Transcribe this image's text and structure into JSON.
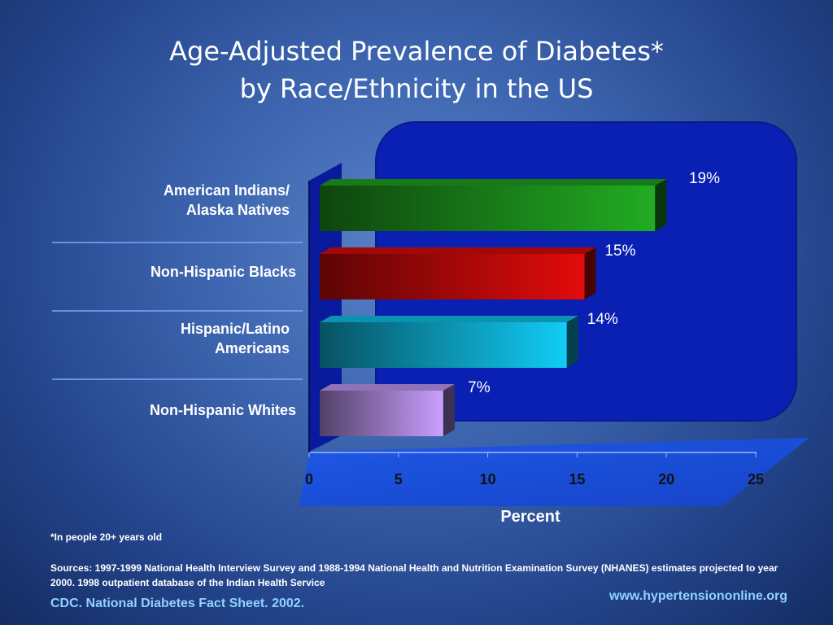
{
  "slide": {
    "title_line1": "Age-Adjusted Prevalence of Diabetes*",
    "title_line2": "by Race/Ethnicity in the US",
    "footnote": "*In people 20+ years old",
    "sources": "Sources: 1997-1999 National Health Interview Survey and 1988-1994 National Health and Nutrition Examination Survey (NHANES) estimates projected to year 2000. 1998 outpatient database of the Indian Health Service",
    "citation": "CDC. National Diabetes Fact Sheet. 2002.",
    "website": "www.hypertensiononline.org"
  },
  "chart_data": {
    "type": "bar",
    "orientation": "horizontal",
    "categories": [
      "American Indians/\nAlaska Natives",
      "Non-Hispanic Blacks",
      "Hispanic/Latino\nAmericans",
      "Non-Hispanic Whites"
    ],
    "values": [
      19,
      15,
      14,
      7
    ],
    "data_labels": [
      "19%",
      "15%",
      "14%",
      "7%"
    ],
    "colors": [
      "#1e9a1e",
      "#cc0a0a",
      "#0fb6dc",
      "#b48ee6"
    ],
    "xlabel": "Percent",
    "xlim": [
      0,
      25
    ],
    "x_ticks": [
      "0",
      "5",
      "10",
      "15",
      "20",
      "25"
    ],
    "grid": false,
    "style": "3d"
  }
}
